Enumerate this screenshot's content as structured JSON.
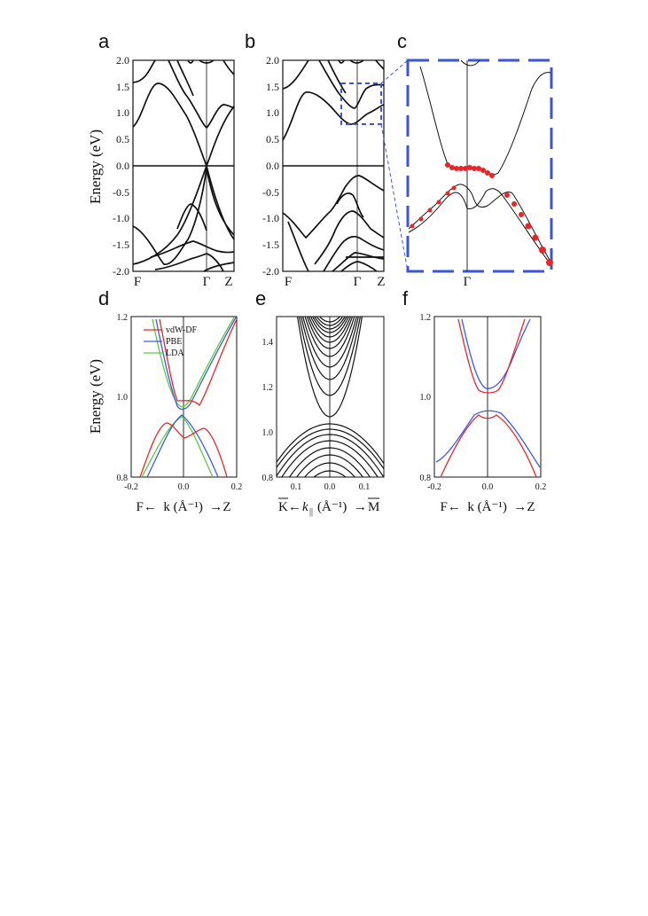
{
  "figure": {
    "panel_labels": [
      "a",
      "b",
      "c",
      "d",
      "e",
      "f"
    ],
    "top_ylabel": "Energy (eV)",
    "bottom_ylabel": "Energy (eV)"
  },
  "chart_data": [
    {
      "panel": "a",
      "type": "line",
      "ylim": [
        -2.0,
        2.0
      ],
      "yticks": [
        "2.0",
        "1.5",
        "1.0",
        "0.5",
        "0.0",
        "-0.5",
        "-1.0",
        "-1.5",
        "-2.0"
      ],
      "kpoint_labels": [
        "F",
        "Γ",
        "Z"
      ],
      "fermi_level": 0.0,
      "bands": [
        {
          "name": "",
          "x": [
            0,
            0.1,
            0.2,
            0.3,
            0.4,
            0.5,
            0.6,
            0.7,
            0.75,
            0.8,
            0.9,
            1.0
          ],
          "y": [
            0.8,
            1.0,
            1.4,
            1.5,
            1.3,
            1.0,
            0.8,
            0.3,
            0.0,
            0.3,
            0.8,
            1.2
          ]
        },
        {
          "name": "",
          "x": [
            0,
            0.2,
            0.4,
            0.5,
            0.6,
            0.7,
            0.75,
            0.8,
            0.9,
            1.0
          ],
          "y": [
            -1.9,
            -1.7,
            -1.0,
            -0.6,
            -0.3,
            -0.1,
            0.0,
            -0.5,
            -1.0,
            -1.3
          ]
        }
      ]
    },
    {
      "panel": "b",
      "type": "line",
      "ylim": [
        -2.0,
        2.0
      ],
      "yticks": [
        "2.0",
        "1.5",
        "1.0",
        "0.5",
        "0.0",
        "-0.5",
        "-1.0",
        "-1.5",
        "-2.0"
      ],
      "kpoint_labels": [
        "F",
        "Γ",
        "Z"
      ],
      "fermi_level": 0.0,
      "inset_box_energy": [
        0.8,
        1.55
      ],
      "bands": [
        {
          "name": "",
          "x": [
            0,
            0.2,
            0.4,
            0.6,
            0.75,
            0.9,
            1.0
          ],
          "y": [
            0.9,
            1.3,
            1.0,
            0.7,
            0.8,
            1.1,
            1.2
          ]
        },
        {
          "name": "",
          "x": [
            0,
            0.2,
            0.4,
            0.6,
            0.75,
            0.9,
            1.0
          ],
          "y": [
            -1.3,
            -1.1,
            -0.6,
            -0.4,
            -0.6,
            -1.0,
            -1.3
          ]
        }
      ]
    },
    {
      "panel": "c",
      "type": "line",
      "kpoint_labels": [
        "Γ"
      ],
      "bands": [
        {
          "name": "",
          "x": [
            -1,
            -0.6,
            -0.3,
            0,
            0.3,
            0.6,
            1
          ],
          "y": [
            1.5,
            1.2,
            1.05,
            0.97,
            1.0,
            1.2,
            1.5
          ]
        },
        {
          "name": "",
          "x": [
            -1,
            -0.6,
            -0.3,
            0,
            0.3,
            0.6,
            1
          ],
          "y": [
            0.82,
            0.92,
            0.96,
            0.9,
            0.94,
            0.88,
            0.78
          ]
        }
      ],
      "highlighted_points": [
        {
          "x": [
            -0.3,
            -0.2,
            -0.1,
            0,
            0.1,
            0.2,
            0.3
          ],
          "y": [
            1.05,
            1.04,
            1.04,
            1.03,
            1.03,
            1.02,
            1.02
          ]
        },
        {
          "x": [
            -0.9,
            -0.7,
            -0.5,
            0.4,
            0.6,
            0.8,
            1.0
          ],
          "y": [
            0.83,
            0.88,
            0.93,
            0.92,
            0.88,
            0.83,
            0.79
          ]
        }
      ]
    },
    {
      "panel": "d",
      "type": "line",
      "xlim": [
        -0.2,
        0.2
      ],
      "ylim": [
        0.8,
        1.2
      ],
      "xticks": [
        "-0.2",
        "0.0",
        "0.2"
      ],
      "yticks": [
        "1.2",
        "1.0",
        "0.8"
      ],
      "xlabel": "F←  k (Å⁻¹)  →Z",
      "legend": [
        "vdW-DF",
        "PBE",
        "LDA"
      ],
      "colors": {
        "vdW-DF": "#e8262a",
        "PBE": "#3b5be6",
        "LDA": "#5ec93c"
      },
      "series": [
        {
          "name": "vdW-DF",
          "x": [
            -0.15,
            -0.1,
            -0.05,
            0,
            0.05,
            0.1,
            0.15
          ],
          "y": [
            1.2,
            1.08,
            0.99,
            0.985,
            0.99,
            1.08,
            1.2
          ]
        },
        {
          "name": "PBE",
          "x": [
            -0.15,
            -0.1,
            -0.05,
            0,
            0.05,
            0.1,
            0.15
          ],
          "y": [
            1.2,
            1.06,
            0.97,
            0.96,
            0.97,
            1.06,
            1.2
          ]
        },
        {
          "name": "LDA",
          "x": [
            -0.15,
            -0.1,
            -0.05,
            0,
            0.05,
            0.1,
            0.15
          ],
          "y": [
            1.2,
            1.05,
            0.96,
            0.955,
            0.96,
            1.05,
            1.2
          ]
        }
      ]
    },
    {
      "panel": "e",
      "type": "line",
      "ylim": [
        0.8,
        1.5
      ],
      "xticks": [
        "0.1",
        "0.0",
        "0.1"
      ],
      "yticks": [
        "1.4",
        "1.2",
        "1.0",
        "0.8"
      ],
      "xlabel_parts": {
        "left": "K",
        "mid": "k",
        "sub": "||",
        "unit": "(Å⁻¹)",
        "right": "M"
      }
    },
    {
      "panel": "f",
      "type": "line",
      "xlim": [
        -0.2,
        0.2
      ],
      "ylim": [
        0.8,
        1.2
      ],
      "xticks": [
        "-0.2",
        "0.0",
        "0.2"
      ],
      "yticks": [
        "1.2",
        "1.0",
        "0.8"
      ],
      "xlabel": "F←  k (Å⁻¹)  →Z",
      "colors": {
        "red": "#e8262a",
        "blue": "#3b5be6"
      }
    }
  ]
}
